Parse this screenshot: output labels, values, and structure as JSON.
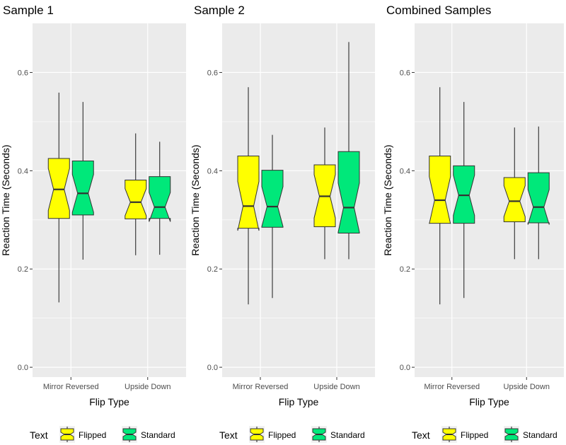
{
  "chart_data": [
    {
      "type": "boxplot",
      "title": "Sample 1",
      "xlabel": "Flip Type",
      "ylabel": "Reaction Time (Seconds)",
      "categories": [
        "Mirror Reversed",
        "Upside Down"
      ],
      "ylim": [
        -0.02,
        0.7
      ],
      "yticks": [
        0.0,
        0.2,
        0.4,
        0.6
      ],
      "ytick_labels": [
        "0.0",
        "0.2",
        "0.4",
        "0.6"
      ],
      "notched": true,
      "grid": true,
      "series": [
        {
          "name": "Flipped",
          "values": [
            {
              "min": 0.132,
              "q1": 0.303,
              "median": 0.362,
              "q3": 0.425,
              "max": 0.559
            },
            {
              "min": 0.228,
              "q1": 0.302,
              "median": 0.336,
              "q3": 0.381,
              "max": 0.476
            }
          ]
        },
        {
          "name": "Standard",
          "values": [
            {
              "min": 0.219,
              "q1": 0.31,
              "median": 0.354,
              "q3": 0.42,
              "max": 0.54
            },
            {
              "min": 0.229,
              "q1": 0.303,
              "median": 0.326,
              "q3": 0.388,
              "max": 0.459
            }
          ]
        }
      ],
      "legend": {
        "title": "Text",
        "entries": [
          "Flipped",
          "Standard"
        ],
        "position": "bottom"
      }
    },
    {
      "type": "boxplot",
      "title": "Sample 2",
      "xlabel": "Flip Type",
      "ylabel": "Reaction Time (Seconds)",
      "categories": [
        "Mirror Reversed",
        "Upside Down"
      ],
      "ylim": [
        -0.02,
        0.7
      ],
      "yticks": [
        0.0,
        0.2,
        0.4,
        0.6
      ],
      "ytick_labels": [
        "0.0",
        "0.2",
        "0.4",
        "0.6"
      ],
      "notched": true,
      "grid": true,
      "series": [
        {
          "name": "Flipped",
          "values": [
            {
              "min": 0.128,
              "q1": 0.283,
              "median": 0.328,
              "q3": 0.43,
              "max": 0.57
            },
            {
              "min": 0.22,
              "q1": 0.286,
              "median": 0.348,
              "q3": 0.412,
              "max": 0.488
            }
          ]
        },
        {
          "name": "Standard",
          "values": [
            {
              "min": 0.141,
              "q1": 0.285,
              "median": 0.327,
              "q3": 0.401,
              "max": 0.473
            },
            {
              "min": 0.22,
              "q1": 0.273,
              "median": 0.325,
              "q3": 0.439,
              "max": 0.662
            }
          ]
        }
      ],
      "legend": {
        "title": "Text",
        "entries": [
          "Flipped",
          "Standard"
        ],
        "position": "bottom"
      }
    },
    {
      "type": "boxplot",
      "title": "Combined Samples",
      "xlabel": "Flip Type",
      "ylabel": "Reaction Time (Seconds)",
      "categories": [
        "Mirror Reversed",
        "Upside Down"
      ],
      "ylim": [
        -0.02,
        0.7
      ],
      "yticks": [
        0.0,
        0.2,
        0.4,
        0.6
      ],
      "ytick_labels": [
        "0.0",
        "0.2",
        "0.4",
        "0.6"
      ],
      "notched": true,
      "grid": true,
      "series": [
        {
          "name": "Flipped",
          "values": [
            {
              "min": 0.128,
              "q1": 0.293,
              "median": 0.34,
              "q3": 0.43,
              "max": 0.57
            },
            {
              "min": 0.22,
              "q1": 0.296,
              "median": 0.338,
              "q3": 0.386,
              "max": 0.488
            }
          ]
        },
        {
          "name": "Standard",
          "values": [
            {
              "min": 0.141,
              "q1": 0.293,
              "median": 0.35,
              "q3": 0.41,
              "max": 0.54
            },
            {
              "min": 0.22,
              "q1": 0.294,
              "median": 0.326,
              "q3": 0.396,
              "max": 0.49
            }
          ]
        }
      ],
      "legend": {
        "title": "Text",
        "entries": [
          "Flipped",
          "Standard"
        ],
        "position": "bottom"
      }
    }
  ],
  "colors": {
    "Flipped": "#ffff00",
    "Standard": "#00e87a",
    "panel_background": "#ebebeb",
    "grid": "#ffffff",
    "outline": "#333333",
    "whisker": "#1a1a1a"
  }
}
